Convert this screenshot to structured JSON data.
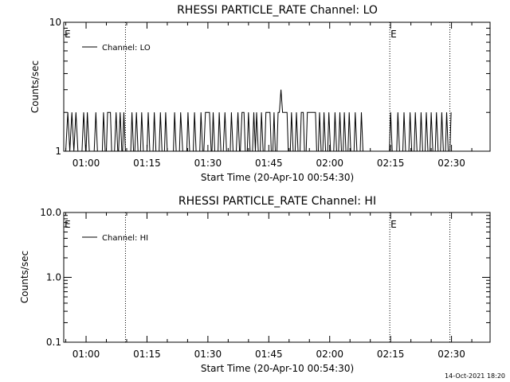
{
  "footer": {
    "timestamp": "14-Oct-2021 18:20"
  },
  "chart_data": [
    {
      "type": "line",
      "title": "RHESSI PARTICLE_RATE Channel: LO",
      "xlabel": "Start Time (20-Apr-10 00:54:30)",
      "ylabel": "Counts/sec",
      "x_ticks": [
        "01:00",
        "01:15",
        "01:30",
        "01:45",
        "02:00",
        "02:15",
        "02:30"
      ],
      "x_tick_minutes": [
        60,
        75,
        90,
        105,
        120,
        135,
        150
      ],
      "x_range_minutes": [
        54.5,
        159.5
      ],
      "y_scale": "log",
      "ylim": [
        1,
        10
      ],
      "y_ticks": [
        "1",
        "10"
      ],
      "y_tick_values": [
        1,
        10
      ],
      "event_markers": {
        "label": "E",
        "minutes": [
          54.5,
          134.8
        ]
      },
      "vlines_minutes": [
        69.7,
        134.8,
        149.6
      ],
      "legend": {
        "position": "top-left",
        "entries": [
          "Channel: LO"
        ]
      },
      "series": [
        {
          "name": "Channel: LO",
          "points": [
            [
              55,
              1
            ],
            [
              55.5,
              2
            ],
            [
              56,
              1
            ],
            [
              56.5,
              2
            ],
            [
              57,
              1
            ],
            [
              57.5,
              2
            ],
            [
              58,
              1
            ],
            [
              59,
              1
            ],
            [
              59.4,
              2
            ],
            [
              59.9,
              1
            ],
            [
              60,
              1
            ],
            [
              60.3,
              2
            ],
            [
              60.8,
              1
            ],
            [
              62,
              1
            ],
            [
              62.4,
              2
            ],
            [
              62.8,
              1
            ],
            [
              64,
              1
            ],
            [
              64.3,
              2
            ],
            [
              64.7,
              1
            ],
            [
              65,
              1
            ],
            [
              65.3,
              2
            ],
            [
              66,
              2
            ],
            [
              66.3,
              1
            ],
            [
              67,
              1
            ],
            [
              67.4,
              2
            ],
            [
              67.8,
              1
            ],
            [
              68,
              1
            ],
            [
              68.4,
              2
            ],
            [
              68.8,
              1
            ],
            [
              69,
              1
            ],
            [
              69.3,
              2
            ],
            [
              69.7,
              1
            ],
            [
              71,
              1
            ],
            [
              71.3,
              2
            ],
            [
              71.7,
              1
            ],
            [
              72,
              1
            ],
            [
              72.4,
              2
            ],
            [
              72.8,
              1
            ],
            [
              73.4,
              1
            ],
            [
              73.7,
              2
            ],
            [
              74.1,
              1
            ],
            [
              75,
              1
            ],
            [
              75.3,
              2
            ],
            [
              75.7,
              1
            ],
            [
              76.5,
              1
            ],
            [
              76.8,
              2
            ],
            [
              77.2,
              1
            ],
            [
              78,
              1
            ],
            [
              78.3,
              2
            ],
            [
              78.7,
              1
            ],
            [
              79.3,
              1
            ],
            [
              79.6,
              2
            ],
            [
              80,
              1
            ],
            [
              81.5,
              1
            ],
            [
              81.8,
              2
            ],
            [
              82.2,
              1
            ],
            [
              83,
              1
            ],
            [
              83.3,
              2
            ],
            [
              83.8,
              1
            ],
            [
              84.8,
              1
            ],
            [
              85.1,
              2
            ],
            [
              85.5,
              1
            ],
            [
              86.4,
              1
            ],
            [
              86.7,
              2
            ],
            [
              87.1,
              1
            ],
            [
              88,
              1
            ],
            [
              88.3,
              2
            ],
            [
              88.7,
              1
            ],
            [
              89,
              1
            ],
            [
              89.4,
              2
            ],
            [
              90.4,
              2
            ],
            [
              90.8,
              1
            ],
            [
              91,
              1
            ],
            [
              91.3,
              2
            ],
            [
              91.7,
              1
            ],
            [
              92,
              1
            ],
            [
              92.5,
              1
            ],
            [
              92.8,
              2
            ],
            [
              93.2,
              1
            ],
            [
              93.8,
              1
            ],
            [
              94.2,
              2
            ],
            [
              94.6,
              1
            ],
            [
              95.5,
              1
            ],
            [
              95.8,
              2
            ],
            [
              96.2,
              1
            ],
            [
              97,
              1
            ],
            [
              97.4,
              2
            ],
            [
              97.8,
              1
            ],
            [
              98,
              1
            ],
            [
              98.4,
              2
            ],
            [
              98.9,
              2
            ],
            [
              99.2,
              1
            ],
            [
              99.7,
              1
            ],
            [
              100,
              2
            ],
            [
              100.4,
              1
            ],
            [
              101,
              1
            ],
            [
              101.3,
              2
            ],
            [
              101.7,
              1
            ],
            [
              102,
              2
            ],
            [
              102.4,
              1
            ],
            [
              102.9,
              1
            ],
            [
              103.2,
              2
            ],
            [
              103.6,
              1
            ],
            [
              104,
              1
            ],
            [
              104.3,
              2
            ],
            [
              105.3,
              2
            ],
            [
              105.6,
              1
            ],
            [
              106,
              1
            ],
            [
              106.3,
              2
            ],
            [
              106.6,
              1
            ],
            [
              107,
              1
            ],
            [
              107.3,
              2
            ],
            [
              107.6,
              2
            ],
            [
              108,
              3
            ],
            [
              108.4,
              2
            ],
            [
              109.5,
              2
            ],
            [
              109.8,
              1
            ],
            [
              110.3,
              1
            ],
            [
              110.6,
              2
            ],
            [
              111,
              1
            ],
            [
              111.5,
              1
            ],
            [
              111.8,
              2
            ],
            [
              112.2,
              1
            ],
            [
              112.7,
              1
            ],
            [
              113,
              2
            ],
            [
              113.5,
              2
            ],
            [
              113.8,
              1
            ],
            [
              114.2,
              1
            ],
            [
              114.5,
              2
            ],
            [
              116.5,
              2
            ],
            [
              116.8,
              1
            ],
            [
              117.2,
              1
            ],
            [
              117.5,
              2
            ],
            [
              117.9,
              1
            ],
            [
              118.3,
              1
            ],
            [
              118.6,
              2
            ],
            [
              119,
              1
            ],
            [
              119.5,
              1
            ],
            [
              119.8,
              2
            ],
            [
              120.2,
              1
            ],
            [
              121,
              1
            ],
            [
              121.3,
              2
            ],
            [
              121.7,
              1
            ],
            [
              122.2,
              1
            ],
            [
              122.5,
              2
            ],
            [
              122.9,
              1
            ],
            [
              123.3,
              1
            ],
            [
              123.6,
              2
            ],
            [
              124,
              1
            ],
            [
              124.5,
              1
            ],
            [
              124.8,
              2
            ],
            [
              125.2,
              1
            ],
            [
              126,
              1
            ],
            [
              126.3,
              2
            ],
            [
              126.7,
              1
            ],
            [
              127.5,
              1
            ],
            [
              127.8,
              2
            ],
            [
              128.2,
              1
            ],
            [
              134.7,
              1
            ],
            [
              135,
              2
            ],
            [
              135.4,
              1
            ],
            [
              136.5,
              1
            ],
            [
              136.8,
              2
            ],
            [
              137.2,
              1
            ],
            [
              138,
              1
            ],
            [
              138.3,
              2
            ],
            [
              138.7,
              1
            ],
            [
              139.5,
              1
            ],
            [
              139.8,
              2
            ],
            [
              140.2,
              1
            ],
            [
              140.8,
              1
            ],
            [
              141.1,
              2
            ],
            [
              141.5,
              1
            ],
            [
              142.2,
              1
            ],
            [
              142.5,
              2
            ],
            [
              142.9,
              1
            ],
            [
              143.5,
              1
            ],
            [
              143.8,
              2
            ],
            [
              144.2,
              1
            ],
            [
              144.7,
              1
            ],
            [
              145,
              2
            ],
            [
              145.4,
              1
            ],
            [
              146,
              1
            ],
            [
              146.3,
              2
            ],
            [
              146.7,
              1
            ],
            [
              147.3,
              1
            ],
            [
              147.6,
              2
            ],
            [
              148,
              1
            ],
            [
              148.5,
              1
            ],
            [
              148.8,
              2
            ],
            [
              149.2,
              1
            ],
            [
              149.6,
              1
            ],
            [
              149.9,
              2
            ]
          ]
        }
      ]
    },
    {
      "type": "line",
      "title": "RHESSI PARTICLE_RATE Channel: HI",
      "xlabel": "Start Time (20-Apr-10 00:54:30)",
      "ylabel": "Counts/sec",
      "x_ticks": [
        "01:00",
        "01:15",
        "01:30",
        "01:45",
        "02:00",
        "02:15",
        "02:30"
      ],
      "x_tick_minutes": [
        60,
        75,
        90,
        105,
        120,
        135,
        150
      ],
      "x_range_minutes": [
        54.5,
        159.5
      ],
      "y_scale": "log",
      "ylim": [
        0.1,
        10
      ],
      "y_ticks": [
        "0.1",
        "1.0",
        "10.0"
      ],
      "y_tick_values": [
        0.1,
        1,
        10
      ],
      "event_markers": {
        "label": "E",
        "minutes": [
          54.5,
          134.8
        ]
      },
      "vlines_minutes": [
        69.7,
        134.8,
        149.6
      ],
      "legend": {
        "position": "top-left",
        "entries": [
          "Channel: HI"
        ]
      },
      "series": [
        {
          "name": "Channel: HI",
          "points": []
        }
      ]
    }
  ]
}
